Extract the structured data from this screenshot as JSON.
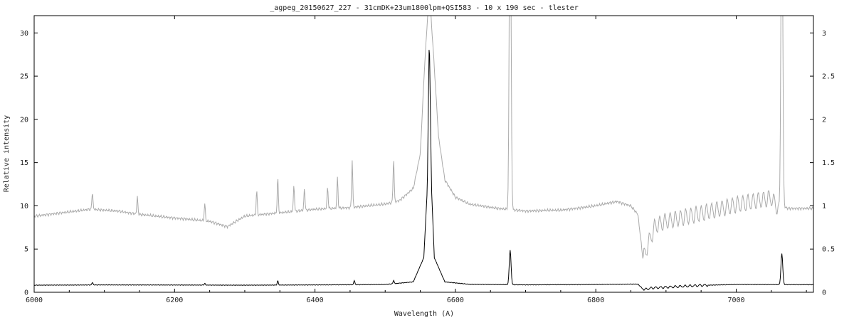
{
  "chart_data": {
    "type": "line",
    "title": "_agpeg_20150627_227 - 31cmDK+23um1800lpm+QSI583 - 10 x 190 sec - tlester",
    "xlabel": "Wavelength (A)",
    "ylabel": "Relative intensity",
    "xlim": [
      6000,
      7110
    ],
    "ylim": [
      0,
      32
    ],
    "y2lim": [
      0,
      3.2
    ],
    "x_ticks": [
      "6000",
      "6200",
      "6400",
      "6600",
      "6800",
      "7000"
    ],
    "y_ticks": [
      "0",
      "5",
      "10",
      "15",
      "20",
      "25",
      "30"
    ],
    "y2_ticks": [
      "0",
      "0.5",
      "1",
      "1.5",
      "2",
      "2.5",
      "3"
    ],
    "grid": false,
    "series_colors": [
      "#000000",
      "#aaaaaa"
    ],
    "series": [
      {
        "axis": "left",
        "continuum": [
          [
            6000,
            0.82
          ],
          [
            6100,
            0.85
          ],
          [
            6200,
            0.84
          ],
          [
            6300,
            0.82
          ],
          [
            6400,
            0.85
          ],
          [
            6500,
            0.9
          ],
          [
            6540,
            1.2
          ],
          [
            6555,
            4.0
          ],
          [
            6560,
            12
          ],
          [
            6562.8,
            30
          ],
          [
            6566,
            12
          ],
          [
            6570,
            4.0
          ],
          [
            6585,
            1.2
          ],
          [
            6620,
            0.92
          ],
          [
            6700,
            0.86
          ],
          [
            6800,
            0.9
          ],
          [
            6860,
            0.95
          ],
          [
            6868,
            0.3
          ],
          [
            6880,
            0.5
          ],
          [
            6950,
            0.8
          ],
          [
            7000,
            0.9
          ],
          [
            7100,
            0.88
          ],
          [
            7110,
            0.88
          ]
        ],
        "peaks": [
          [
            6678,
            4.0
          ],
          [
            7065,
            3.6
          ],
          [
            6347,
            0.5
          ],
          [
            6456,
            0.5
          ],
          [
            6512,
            0.4
          ],
          [
            6083,
            0.3
          ],
          [
            6243,
            0.2
          ]
        ]
      },
      {
        "axis": "right",
        "continuum": [
          [
            6000,
            0.88
          ],
          [
            6050,
            0.93
          ],
          [
            6080,
            0.96
          ],
          [
            6120,
            0.94
          ],
          [
            6150,
            0.9
          ],
          [
            6200,
            0.86
          ],
          [
            6250,
            0.82
          ],
          [
            6275,
            0.76
          ],
          [
            6300,
            0.88
          ],
          [
            6350,
            0.92
          ],
          [
            6400,
            0.96
          ],
          [
            6450,
            0.98
          ],
          [
            6500,
            1.02
          ],
          [
            6520,
            1.06
          ],
          [
            6540,
            1.2
          ],
          [
            6550,
            1.6
          ],
          [
            6556,
            2.6
          ],
          [
            6562.8,
            3.5
          ],
          [
            6570,
            2.6
          ],
          [
            6576,
            1.8
          ],
          [
            6585,
            1.3
          ],
          [
            6600,
            1.1
          ],
          [
            6620,
            1.02
          ],
          [
            6660,
            0.97
          ],
          [
            6700,
            0.94
          ],
          [
            6750,
            0.95
          ],
          [
            6800,
            1.0
          ],
          [
            6830,
            1.05
          ],
          [
            6850,
            1.0
          ],
          [
            6860,
            0.9
          ],
          [
            6867,
            0.4
          ],
          [
            6875,
            0.6
          ],
          [
            6885,
            0.8
          ],
          [
            6900,
            0.85
          ],
          [
            6950,
            0.94
          ],
          [
            7000,
            1.04
          ],
          [
            7050,
            1.12
          ],
          [
            7060,
            1.0
          ],
          [
            7075,
            0.97
          ],
          [
            7110,
            0.97
          ]
        ],
        "peaks": [
          [
            6678,
            4.0
          ],
          [
            7065,
            4.0
          ],
          [
            6453,
            0.55
          ],
          [
            6512,
            0.5
          ],
          [
            6347,
            0.4
          ],
          [
            6317,
            0.28
          ],
          [
            6370,
            0.3
          ],
          [
            6385,
            0.25
          ],
          [
            6418,
            0.25
          ],
          [
            6432,
            0.35
          ],
          [
            6083,
            0.2
          ],
          [
            6147,
            0.2
          ],
          [
            6243,
            0.2
          ]
        ]
      }
    ]
  }
}
